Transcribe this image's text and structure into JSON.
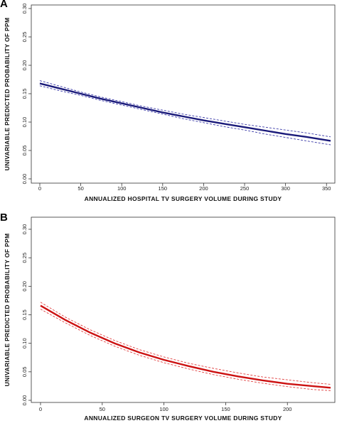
{
  "chart_data": [
    {
      "type": "line",
      "panel_label": "A",
      "xlabel": "ANNUALIZED  HOSPITAL  TV SURGERY  VOLUME  DURING  STUDY",
      "ylabel": "UNIVARIABLE  PREDICTED  PROBABILITY  OF  PPM",
      "xlim": [
        0,
        355
      ],
      "ylim": [
        0,
        0.3
      ],
      "xticks": [
        0,
        50,
        100,
        150,
        200,
        250,
        300,
        350
      ],
      "xtick_labels": [
        "0",
        "50",
        "100",
        "150",
        "200",
        "250",
        "300",
        "350"
      ],
      "yticks": [
        0.0,
        0.05,
        0.1,
        0.15,
        0.2,
        0.25,
        0.3
      ],
      "ytick_labels": [
        "0.00",
        "0.05",
        "0.10",
        "0.15",
        "0.20",
        "0.25",
        "0.30"
      ],
      "grid": false,
      "line_color": "#1a1a7a",
      "band_color": "#3a3aa8",
      "series": [
        {
          "role": "estimate",
          "x": [
            0,
            25,
            50,
            75,
            100,
            125,
            150,
            175,
            200,
            225,
            250,
            275,
            300,
            325,
            355
          ],
          "values": [
            0.168,
            0.159,
            0.15,
            0.141,
            0.133,
            0.125,
            0.117,
            0.11,
            0.103,
            0.097,
            0.091,
            0.085,
            0.079,
            0.074,
            0.067
          ]
        },
        {
          "role": "upper",
          "x": [
            0,
            25,
            50,
            75,
            100,
            125,
            150,
            175,
            200,
            225,
            250,
            275,
            300,
            325,
            355
          ],
          "values": [
            0.173,
            0.163,
            0.153,
            0.144,
            0.136,
            0.128,
            0.121,
            0.114,
            0.108,
            0.102,
            0.096,
            0.091,
            0.086,
            0.081,
            0.074
          ]
        },
        {
          "role": "lower",
          "x": [
            0,
            25,
            50,
            75,
            100,
            125,
            150,
            175,
            200,
            225,
            250,
            275,
            300,
            325,
            355
          ],
          "values": [
            0.164,
            0.155,
            0.147,
            0.138,
            0.13,
            0.122,
            0.114,
            0.106,
            0.099,
            0.092,
            0.086,
            0.079,
            0.073,
            0.067,
            0.06
          ]
        }
      ]
    },
    {
      "type": "line",
      "panel_label": "B",
      "xlabel": "ANNUALIZED  SURGEON  TV SURGERY  VOLUME  DURING  STUDY",
      "ylabel": "UNIVARIABLE  PREDICTED  PROBABILITY  OF  PPM",
      "xlim": [
        0,
        235
      ],
      "ylim": [
        0,
        0.3
      ],
      "xticks": [
        0,
        50,
        100,
        150,
        200
      ],
      "xtick_labels": [
        "0",
        "50",
        "100",
        "150",
        "200"
      ],
      "yticks": [
        0.0,
        0.05,
        0.1,
        0.15,
        0.2,
        0.25,
        0.3
      ],
      "ytick_labels": [
        "0.00",
        "0.05",
        "0.10",
        "0.15",
        "0.20",
        "0.25",
        "0.30"
      ],
      "grid": false,
      "line_color": "#cc1111",
      "band_color": "#e04040",
      "series": [
        {
          "role": "estimate",
          "x": [
            0,
            20,
            40,
            60,
            80,
            100,
            120,
            140,
            160,
            180,
            200,
            220,
            235
          ],
          "values": [
            0.166,
            0.141,
            0.119,
            0.1,
            0.084,
            0.071,
            0.06,
            0.05,
            0.042,
            0.035,
            0.029,
            0.025,
            0.022
          ]
        },
        {
          "role": "upper",
          "x": [
            0,
            20,
            40,
            60,
            80,
            100,
            120,
            140,
            160,
            180,
            200,
            220,
            235
          ],
          "values": [
            0.172,
            0.146,
            0.124,
            0.105,
            0.089,
            0.076,
            0.065,
            0.056,
            0.048,
            0.041,
            0.036,
            0.031,
            0.028
          ]
        },
        {
          "role": "lower",
          "x": [
            0,
            20,
            40,
            60,
            80,
            100,
            120,
            140,
            160,
            180,
            200,
            220,
            235
          ],
          "values": [
            0.16,
            0.136,
            0.114,
            0.095,
            0.079,
            0.066,
            0.055,
            0.045,
            0.037,
            0.03,
            0.024,
            0.019,
            0.017
          ]
        }
      ]
    }
  ]
}
